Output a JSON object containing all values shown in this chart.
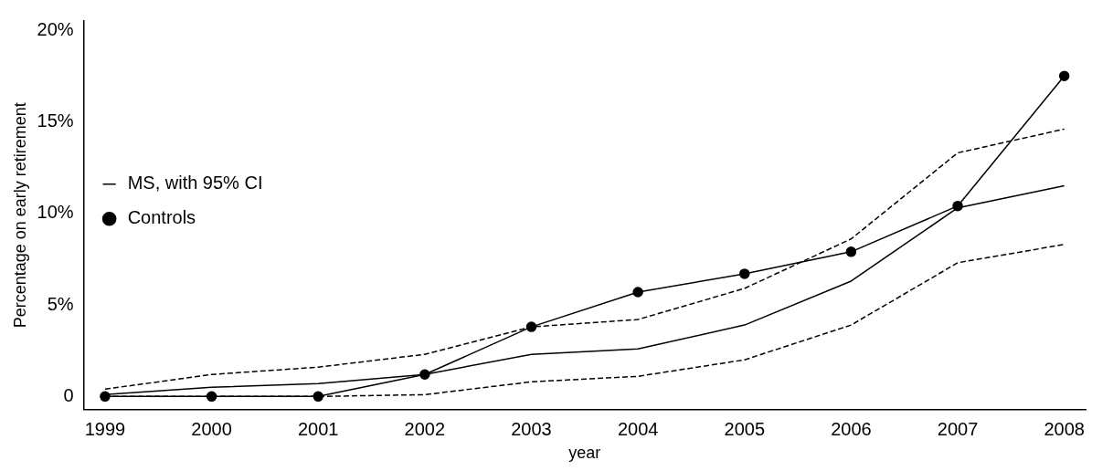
{
  "chart_data": {
    "type": "line",
    "xlabel": "year",
    "ylabel": "Percentage on early retirement",
    "x": [
      1999,
      2000,
      2001,
      2002,
      2003,
      2004,
      2005,
      2006,
      2007,
      2008
    ],
    "xlim": [
      1998.8,
      2008.2
    ],
    "xticks": [
      1999,
      2000,
      2001,
      2002,
      2003,
      2004,
      2005,
      2006,
      2007,
      2008
    ],
    "ylim": [
      -0.7,
      20.5
    ],
    "yticks": [
      {
        "value": 0,
        "label": "0"
      },
      {
        "value": 5,
        "label": "5%"
      },
      {
        "value": 10,
        "label": "10%"
      },
      {
        "value": 15,
        "label": "15%"
      },
      {
        "value": 20,
        "label": "20%"
      }
    ],
    "grid": false,
    "legend": "top",
    "line_style": "solid",
    "series": [
      {
        "name": "MS, with 95% CI",
        "color": "#000000",
        "marker": "none",
        "values": [
          0.1,
          0.5,
          0.7,
          1.2,
          2.3,
          2.6,
          3.9,
          6.3,
          10.3,
          11.5
        ]
      },
      {
        "name": "Controls",
        "color": "#000000",
        "marker": "circle",
        "values": [
          0,
          0,
          0,
          1.2,
          3.8,
          5.7,
          6.7,
          7.9,
          10.4,
          17.5
        ]
      },
      {
        "color": "#000000",
        "marker": "none",
        "line_style": "dashed",
        "values": [
          0,
          0,
          0,
          0.1,
          0.8,
          1.1,
          2.0,
          3.9,
          7.3,
          8.3
        ]
      },
      {
        "color": "#000000",
        "marker": "none",
        "line_style": "dashed",
        "values": [
          0.4,
          1.2,
          1.6,
          2.3,
          3.8,
          4.2,
          5.9,
          8.6,
          13.3,
          14.6
        ]
      }
    ]
  }
}
